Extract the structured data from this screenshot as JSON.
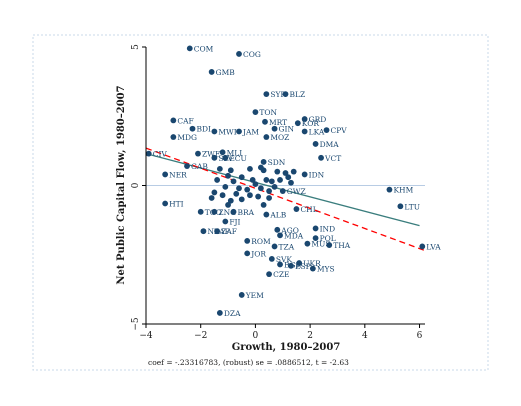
{
  "chart_data": {
    "type": "scatter",
    "xlabel": "Growth, 1980–2007",
    "ylabel": "Net Public Capital Flow, 1980–2007",
    "note": "coef = -.23316783, (robust) se = .0886512, t = -2.63",
    "xlim": [
      -4,
      6.2
    ],
    "ylim": [
      -5,
      5
    ],
    "xticks": [
      -4,
      -2,
      0,
      2,
      4,
      6
    ],
    "yticks": [
      -5,
      0,
      5
    ],
    "colors": {
      "marker": "#1a476f",
      "label": "#1a476f",
      "fit_line": "#3a7d7d",
      "regression_line": "#ff0000",
      "zero_line": "#b8cce4",
      "frame": "#c8d8e8",
      "axis": "#000000"
    },
    "fit_line": {
      "x1": -4,
      "y1": 1.15,
      "x2": 6,
      "y2": -1.45
    },
    "regression_line": {
      "x1": -4,
      "y1": 1.35,
      "x2": 6.2,
      "y2": -2.35
    },
    "points": [
      {
        "label": "COM",
        "x": -2.4,
        "y": 4.95
      },
      {
        "label": "COG",
        "x": -0.6,
        "y": 4.75
      },
      {
        "label": "GMB",
        "x": -1.6,
        "y": 4.1
      },
      {
        "label": "SYR",
        "x": 0.4,
        "y": 3.3
      },
      {
        "label": "BLZ",
        "x": 1.1,
        "y": 3.3
      },
      {
        "label": "TON",
        "x": 0.0,
        "y": 2.65
      },
      {
        "label": "CAF",
        "x": -3.0,
        "y": 2.35
      },
      {
        "label": "GRD",
        "x": 1.8,
        "y": 2.4
      },
      {
        "label": "KOR",
        "x": 1.55,
        "y": 2.25
      },
      {
        "label": "MRT",
        "x": 0.35,
        "y": 2.3
      },
      {
        "label": "GIN",
        "x": 0.7,
        "y": 2.05
      },
      {
        "label": "BDI",
        "x": -2.3,
        "y": 2.05
      },
      {
        "label": "MWI",
        "x": -1.5,
        "y": 1.95
      },
      {
        "label": "JAM",
        "x": -0.6,
        "y": 1.95
      },
      {
        "label": "LKA",
        "x": 1.8,
        "y": 1.95
      },
      {
        "label": "CPV",
        "x": 2.6,
        "y": 2.0
      },
      {
        "label": "MDG",
        "x": -3.0,
        "y": 1.75
      },
      {
        "label": "MOZ",
        "x": 0.4,
        "y": 1.75
      },
      {
        "label": "DMA",
        "x": 2.2,
        "y": 1.5
      },
      {
        "label": "MLI",
        "x": -1.2,
        "y": 1.2
      },
      {
        "label": "CIV",
        "x": -3.9,
        "y": 1.15
      },
      {
        "label": "ZWE",
        "x": -2.1,
        "y": 1.15
      },
      {
        "label": "SLV",
        "x": -1.5,
        "y": 1.0
      },
      {
        "label": "ECU",
        "x": -1.1,
        "y": 1.0
      },
      {
        "label": "VCT",
        "x": 2.4,
        "y": 1.0
      },
      {
        "label": "SDN",
        "x": 0.3,
        "y": 0.85
      },
      {
        "label": "GAB",
        "x": -2.5,
        "y": 0.7
      },
      {
        "label": "NER",
        "x": -3.3,
        "y": 0.4
      },
      {
        "label": "IDN",
        "x": 1.8,
        "y": 0.4
      },
      {
        "label": "KHM",
        "x": 4.9,
        "y": -0.15
      },
      {
        "label": "GWZ",
        "x": 1.0,
        "y": -0.2
      },
      {
        "label": "HTI",
        "x": -3.3,
        "y": -0.65
      },
      {
        "label": "LTU",
        "x": 5.3,
        "y": -0.75
      },
      {
        "label": "CHL",
        "x": 1.5,
        "y": -0.85
      },
      {
        "label": "TGO",
        "x": -2.0,
        "y": -0.95
      },
      {
        "label": "ZNG",
        "x": -1.5,
        "y": -0.95
      },
      {
        "label": "BRA",
        "x": -0.8,
        "y": -0.95
      },
      {
        "label": "ALB",
        "x": 0.4,
        "y": -1.05
      },
      {
        "label": "FJI",
        "x": -1.1,
        "y": -1.3
      },
      {
        "label": "IND",
        "x": 2.2,
        "y": -1.55
      },
      {
        "label": "AGO",
        "x": 0.8,
        "y": -1.6
      },
      {
        "label": "MDA",
        "x": 0.9,
        "y": -1.8
      },
      {
        "label": "NZAF",
        "x": -1.9,
        "y": -1.65
      },
      {
        "label": "ZAF",
        "x": -1.4,
        "y": -1.65
      },
      {
        "label": "POL",
        "x": 2.2,
        "y": -1.9
      },
      {
        "label": "ROM",
        "x": -0.3,
        "y": -2.0
      },
      {
        "label": "MUS",
        "x": 1.9,
        "y": -2.1
      },
      {
        "label": "THA",
        "x": 2.7,
        "y": -2.15
      },
      {
        "label": "LVA",
        "x": 6.1,
        "y": -2.2
      },
      {
        "label": "TZA",
        "x": 0.7,
        "y": -2.2
      },
      {
        "label": "JOR",
        "x": -0.3,
        "y": -2.45
      },
      {
        "label": "UKR",
        "x": 1.6,
        "y": -2.8
      },
      {
        "label": "SVK",
        "x": 0.6,
        "y": -2.65
      },
      {
        "label": "BGR",
        "x": 0.9,
        "y": -2.85
      },
      {
        "label": "ESP",
        "x": 1.3,
        "y": -2.9
      },
      {
        "label": "MYS",
        "x": 2.1,
        "y": -3.0
      },
      {
        "label": "CZE",
        "x": 0.5,
        "y": -3.2
      },
      {
        "label": "YEM",
        "x": -0.5,
        "y": -3.95
      },
      {
        "label": "DZA",
        "x": -1.3,
        "y": -4.6
      }
    ],
    "unlabeled_points": [
      {
        "x": -0.2,
        "y": 0.6
      },
      {
        "x": 0.3,
        "y": 0.55
      },
      {
        "x": -0.9,
        "y": 0.55
      },
      {
        "x": -1.0,
        "y": 0.35
      },
      {
        "x": -0.5,
        "y": 0.3
      },
      {
        "x": 0.8,
        "y": 0.5
      },
      {
        "x": 1.1,
        "y": 0.45
      },
      {
        "x": 1.4,
        "y": 0.5
      },
      {
        "x": 1.2,
        "y": 0.3
      },
      {
        "x": -0.1,
        "y": 0.2
      },
      {
        "x": -0.8,
        "y": 0.15
      },
      {
        "x": 0.0,
        "y": 0.05
      },
      {
        "x": 0.4,
        "y": 0.2
      },
      {
        "x": 0.6,
        "y": 0.15
      },
      {
        "x": -1.1,
        "y": -0.05
      },
      {
        "x": -0.6,
        "y": -0.1
      },
      {
        "x": -0.3,
        "y": -0.15
      },
      {
        "x": 0.2,
        "y": -0.1
      },
      {
        "x": 0.5,
        "y": -0.2
      },
      {
        "x": -1.5,
        "y": -0.25
      },
      {
        "x": -1.2,
        "y": -0.35
      },
      {
        "x": -0.7,
        "y": -0.3
      },
      {
        "x": -0.2,
        "y": -0.35
      },
      {
        "x": 0.1,
        "y": -0.4
      },
      {
        "x": 0.5,
        "y": -0.45
      },
      {
        "x": -1.6,
        "y": -0.45
      },
      {
        "x": -0.5,
        "y": -0.5
      },
      {
        "x": 0.2,
        "y": 0.65
      },
      {
        "x": 0.9,
        "y": 0.2
      },
      {
        "x": 1.3,
        "y": 0.1
      },
      {
        "x": -1.3,
        "y": 0.6
      },
      {
        "x": -1.4,
        "y": 0.2
      },
      {
        "x": 0.7,
        "y": -0.05
      },
      {
        "x": -0.9,
        "y": -0.55
      },
      {
        "x": -1.0,
        "y": -0.7
      },
      {
        "x": 0.3,
        "y": -0.7
      }
    ]
  }
}
